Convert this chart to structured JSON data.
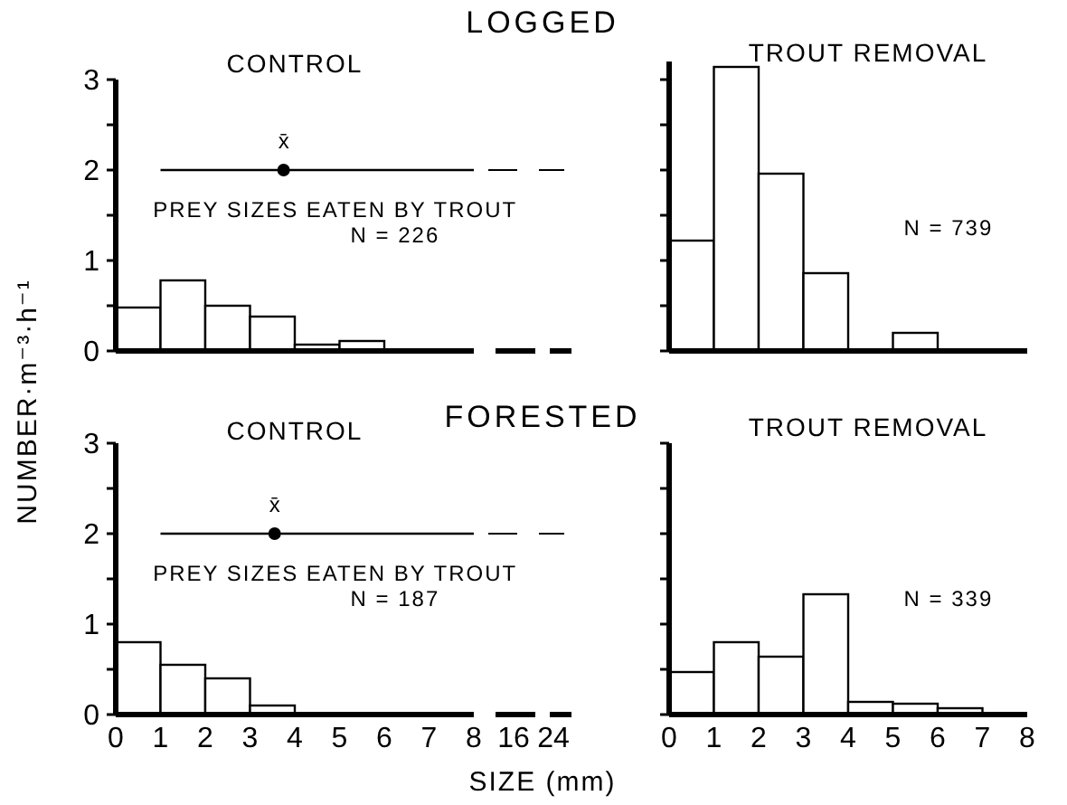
{
  "chart_data": [
    {
      "type": "histogram",
      "title": "LOGGED",
      "subtitle": "CONTROL",
      "bins": [
        0,
        1,
        2,
        3,
        4,
        5,
        6,
        7,
        8
      ],
      "values": [
        0.48,
        0.78,
        0.5,
        0.38,
        0.07,
        0.11,
        0,
        0
      ],
      "color": "#ffffff",
      "xlim": [
        0,
        8
      ],
      "ylim": [
        0,
        3
      ],
      "yticks": [
        0,
        {
          "value": 0.5,
          "label": null
        },
        1,
        {
          "value": 1.5,
          "label": null
        },
        2,
        {
          "value": 2.5,
          "label": null
        },
        3
      ],
      "tick_labels": "y",
      "series": [
        {
          "type": "line",
          "color": "#000000",
          "x": [
            1,
            8
          ],
          "values": [
            2,
            2
          ]
        },
        {
          "type": "scatter",
          "color": "#000000",
          "marker": "circle",
          "x": [
            3.75
          ],
          "values": [
            2
          ]
        }
      ],
      "annotations": [
        "N = 226",
        "x̄",
        "PREY SIZES EATEN BY TROUT"
      ]
    },
    {
      "type": "histogram",
      "subtitle": "TROUT REMOVAL",
      "bins": [
        0,
        1,
        2,
        3,
        4,
        5,
        6,
        7,
        8
      ],
      "values": [
        1.22,
        3.14,
        1.96,
        0.86,
        0,
        0.2,
        0,
        0
      ],
      "color": "#ffffff",
      "xlim": [
        0,
        8
      ],
      "ylim": [
        0,
        3.2
      ],
      "yticks": [
        0,
        0.5,
        1,
        1.5,
        2,
        2.5,
        3
      ],
      "tick_labels": false,
      "annotations": [
        "N = 739"
      ]
    },
    {
      "type": "histogram",
      "title": "FORESTED",
      "subtitle": "CONTROL",
      "xlabel": "SIZE (mm)",
      "ylabel": "NUMBER·m⁻³·h⁻¹",
      "bins": [
        0,
        1,
        2,
        3,
        4,
        5,
        6,
        7,
        8
      ],
      "values": [
        0.8,
        0.55,
        0.4,
        0.1,
        0,
        0,
        0,
        0
      ],
      "color": "#ffffff",
      "xlim": [
        0,
        8
      ],
      "xticks": [
        0,
        1,
        2,
        3,
        4,
        5,
        6,
        7,
        8
      ],
      "ylim": [
        0,
        3
      ],
      "yticks": [
        0,
        {
          "value": 0.5,
          "label": null
        },
        1,
        {
          "value": 1.5,
          "label": null
        },
        2,
        {
          "value": 2.5,
          "label": null
        },
        3
      ],
      "series": [
        {
          "type": "line",
          "color": "#000000",
          "x": [
            1,
            8
          ],
          "values": [
            2,
            2
          ]
        },
        {
          "type": "scatter",
          "color": "#000000",
          "marker": "circle",
          "x": [
            3.55
          ],
          "values": [
            2
          ]
        }
      ],
      "annotations": [
        "N = 187",
        "x̄",
        "PREY SIZES EATEN BY TROUT",
        "16",
        "24"
      ]
    },
    {
      "type": "histogram",
      "subtitle": "TROUT REMOVAL",
      "bins": [
        0,
        1,
        2,
        3,
        4,
        5,
        6,
        7,
        8
      ],
      "values": [
        0.47,
        0.8,
        0.64,
        1.33,
        0.14,
        0.12,
        0.07,
        0
      ],
      "color": "#ffffff",
      "xlim": [
        0,
        8
      ],
      "xticks": [
        0,
        1,
        2,
        3,
        4,
        5,
        6,
        7,
        8
      ],
      "ylim": [
        0,
        3
      ],
      "yticks": [
        0,
        0.5,
        1,
        1.5,
        2,
        2.5,
        3
      ],
      "tick_labels": "x",
      "annotations": [
        "N = 339"
      ]
    }
  ]
}
